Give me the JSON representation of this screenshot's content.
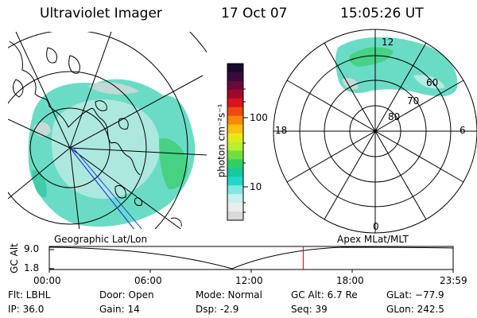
{
  "header": {
    "title": "Ultraviolet Imager",
    "date": "17 Oct 07",
    "time": "15:05:26 UT"
  },
  "colorbar": {
    "label": "photon cm⁻²s⁻¹",
    "ticks": [
      "100",
      "10"
    ],
    "colors": [
      "#1a0a2e",
      "#3b0a3c",
      "#6a0a3a",
      "#a00a2a",
      "#d8141e",
      "#f04a10",
      "#f88a08",
      "#f8c010",
      "#e8e818",
      "#b8f030",
      "#70e040",
      "#30d060",
      "#18c8a0",
      "#20d8c8",
      "#80e8e0",
      "#c8f0ec",
      "#e8eeee",
      "#d8d8d8"
    ]
  },
  "maps": {
    "left_label": "Geographic Lat/Lon",
    "right_label": "Apex MLat/MLT"
  },
  "polar_labels": {
    "mlt": [
      "12",
      "18",
      "6",
      "0"
    ],
    "mlat": [
      "60",
      "70",
      "80"
    ]
  },
  "timeline": {
    "ylabel": "GC Alt",
    "yticks": [
      "9.0",
      "1.8"
    ],
    "xticks": [
      "00:00",
      "06:00",
      "12:00",
      "18:00",
      "23:59"
    ],
    "marker_fraction": 0.6288,
    "marker_color": "#e00000"
  },
  "info": {
    "flt": "Flt: LBHL",
    "ip": "IP: 36.0",
    "door": "Door: Open",
    "gain": "Gain: 14",
    "mode": "Mode: Normal",
    "dsp": "Dsp:    -2.9",
    "gc_alt": "GC Alt: 6.7 Re",
    "seq": "Seq: 39",
    "glat": "GLat: −77.9",
    "glon": "GLon: 242.5"
  }
}
